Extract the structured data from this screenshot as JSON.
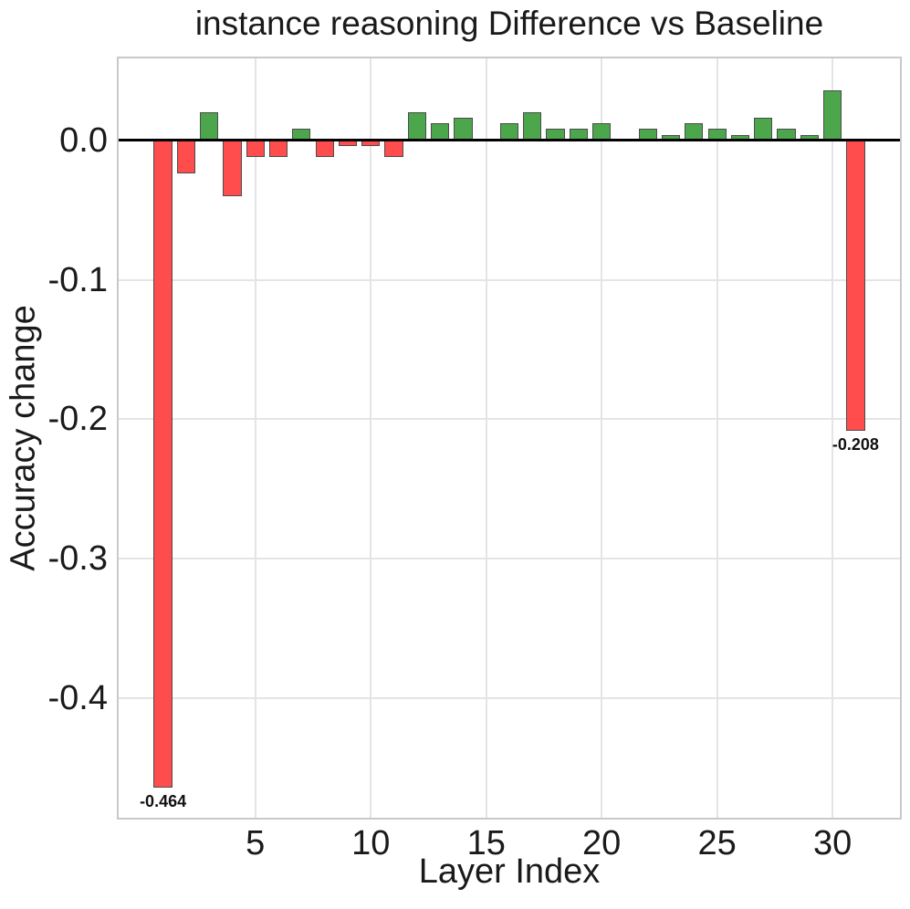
{
  "chart_data": {
    "type": "bar",
    "title": "instance reasoning Difference vs Baseline",
    "xlabel": "Layer Index",
    "ylabel": "Accuracy change",
    "x": [
      1,
      2,
      3,
      4,
      5,
      6,
      7,
      8,
      9,
      10,
      11,
      12,
      13,
      14,
      15,
      16,
      17,
      18,
      19,
      20,
      21,
      22,
      23,
      24,
      25,
      26,
      27,
      28,
      29,
      30,
      31
    ],
    "values": [
      -0.464,
      -0.024,
      0.02,
      -0.04,
      -0.012,
      -0.012,
      0.008,
      -0.012,
      -0.004,
      -0.004,
      -0.012,
      0.02,
      0.012,
      0.016,
      0.0,
      0.012,
      0.02,
      0.008,
      0.008,
      0.012,
      0.0,
      0.008,
      0.004,
      0.012,
      0.008,
      0.004,
      0.016,
      0.008,
      0.004,
      0.036,
      -0.208
    ],
    "bar_width": 0.8,
    "xlim": [
      -1.0,
      33.0
    ],
    "ylim": [
      -0.487,
      0.06
    ],
    "xticks": [
      5,
      10,
      15,
      20,
      25,
      30
    ],
    "yticks": [
      0.0,
      -0.1,
      -0.2,
      -0.3,
      -0.4
    ],
    "ytick_labels": [
      "0.0",
      "-0.1",
      "-0.2",
      "-0.3",
      "-0.4"
    ],
    "grid": true,
    "legend_position": "none",
    "annotations": [
      {
        "x": 1,
        "label": "-0.464"
      },
      {
        "x": 31,
        "label": "-0.208"
      }
    ],
    "colors": {
      "positive_bar": "#4ca64c",
      "negative_bar": "#ff4c4c",
      "bar_edge": "#4c4c4c",
      "zero_line": "#000000",
      "grid": "#e4e4e4",
      "plot_border": "#c9c9c9",
      "text": "#1a1a1a",
      "background": "#ffffff"
    }
  }
}
